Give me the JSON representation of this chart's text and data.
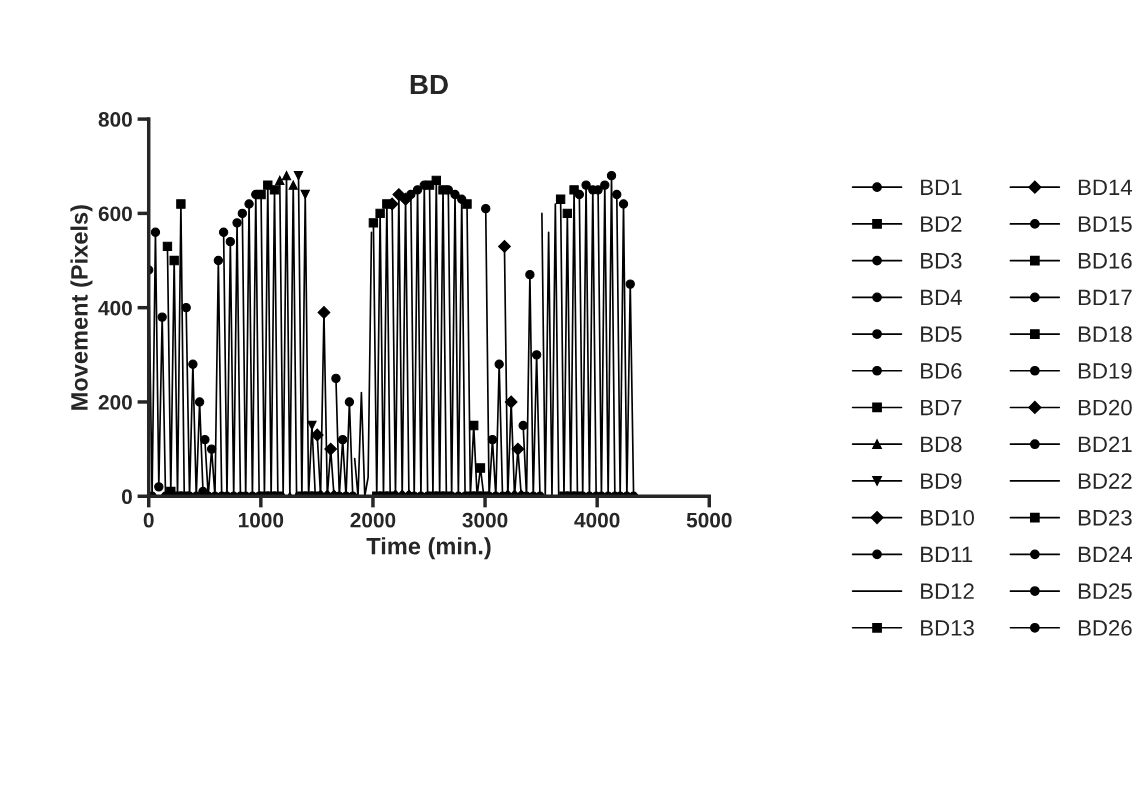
{
  "chart_data": {
    "type": "line",
    "title": "BD",
    "xlabel": "Time (min.)",
    "ylabel": "Movement (Pixels)",
    "xlim": [
      0,
      5000
    ],
    "xticks": [
      0,
      1000,
      2000,
      3000,
      4000,
      5000
    ],
    "ylim": [
      0,
      800
    ],
    "yticks": [
      0,
      200,
      400,
      600,
      800
    ],
    "grid": false,
    "legend": "right",
    "line_style": "solid",
    "series": [
      {
        "name": "BD1",
        "color": "#000000",
        "marker": "circle",
        "x": [
          0,
          30,
          60,
          90,
          120,
          150
        ],
        "values": [
          480,
          0,
          560,
          20,
          380,
          0
        ]
      },
      {
        "name": "BD2",
        "color": "#000000",
        "marker": "square",
        "x": [
          167,
          197,
          227,
          257,
          287,
          317
        ],
        "values": [
          530,
          10,
          500,
          0,
          620,
          0
        ]
      },
      {
        "name": "BD3",
        "color": "#000000",
        "marker": "circle",
        "x": [
          334,
          364,
          394,
          424,
          454,
          484
        ],
        "values": [
          400,
          0,
          280,
          0,
          200,
          10
        ]
      },
      {
        "name": "BD4",
        "color": "#000000",
        "marker": "circle",
        "x": [
          501,
          531,
          561,
          591,
          621,
          651
        ],
        "values": [
          120,
          0,
          100,
          0,
          500,
          0
        ]
      },
      {
        "name": "BD5",
        "color": "#000000",
        "marker": "circle",
        "x": [
          668,
          698,
          728,
          758,
          788,
          818
        ],
        "values": [
          560,
          0,
          540,
          0,
          580,
          0
        ]
      },
      {
        "name": "BD6",
        "color": "#000000",
        "marker": "circle",
        "x": [
          835,
          865,
          895,
          925,
          955,
          985
        ],
        "values": [
          600,
          0,
          620,
          0,
          640,
          0
        ]
      },
      {
        "name": "BD7",
        "color": "#000000",
        "marker": "square",
        "x": [
          1002,
          1032,
          1062,
          1092,
          1122,
          1152
        ],
        "values": [
          640,
          0,
          660,
          0,
          650,
          0
        ]
      },
      {
        "name": "BD8",
        "color": "#000000",
        "marker": "triangle",
        "x": [
          1169,
          1199,
          1229,
          1259,
          1289,
          1319
        ],
        "values": [
          670,
          0,
          680,
          0,
          660,
          0
        ]
      },
      {
        "name": "BD9",
        "color": "#000000",
        "marker": "triangle_down",
        "x": [
          1336,
          1366,
          1396,
          1426,
          1456,
          1486
        ],
        "values": [
          680,
          0,
          640,
          0,
          150,
          0
        ]
      },
      {
        "name": "BD10",
        "color": "#000000",
        "marker": "diamond",
        "x": [
          1503,
          1533,
          1563,
          1593,
          1623,
          1653
        ],
        "values": [
          130,
          0,
          390,
          0,
          100,
          0
        ]
      },
      {
        "name": "BD11",
        "color": "#000000",
        "marker": "circle",
        "x": [
          1670,
          1700,
          1730,
          1760,
          1790,
          1820
        ],
        "values": [
          250,
          0,
          120,
          0,
          200,
          0
        ]
      },
      {
        "name": "BD12",
        "color": "#000000",
        "marker": "none",
        "x": [
          1837,
          1867,
          1897,
          1927,
          1957,
          1987
        ],
        "values": [
          80,
          0,
          220,
          0,
          40,
          560
        ]
      },
      {
        "name": "BD13",
        "color": "#000000",
        "marker": "square",
        "x": [
          2004,
          2034,
          2064,
          2094,
          2124,
          2154
        ],
        "values": [
          580,
          0,
          600,
          0,
          620,
          0
        ]
      },
      {
        "name": "BD14",
        "color": "#000000",
        "marker": "diamond",
        "x": [
          2171,
          2201,
          2231,
          2261,
          2291,
          2321
        ],
        "values": [
          620,
          0,
          640,
          0,
          630,
          0
        ]
      },
      {
        "name": "BD15",
        "color": "#000000",
        "marker": "circle",
        "x": [
          2338,
          2368,
          2398,
          2428,
          2458,
          2488
        ],
        "values": [
          640,
          0,
          650,
          0,
          660,
          0
        ]
      },
      {
        "name": "BD16",
        "color": "#000000",
        "marker": "square",
        "x": [
          2505,
          2535,
          2565,
          2595,
          2625,
          2655
        ],
        "values": [
          660,
          0,
          670,
          0,
          650,
          0
        ]
      },
      {
        "name": "BD17",
        "color": "#000000",
        "marker": "circle",
        "x": [
          2672,
          2702,
          2732,
          2762,
          2792,
          2822
        ],
        "values": [
          650,
          0,
          640,
          0,
          630,
          0
        ]
      },
      {
        "name": "BD18",
        "color": "#000000",
        "marker": "square",
        "x": [
          2839,
          2869,
          2899,
          2929,
          2959,
          2989
        ],
        "values": [
          620,
          0,
          150,
          0,
          60,
          0
        ]
      },
      {
        "name": "BD19",
        "color": "#000000",
        "marker": "circle",
        "x": [
          3006,
          3036,
          3066,
          3096,
          3126,
          3156
        ],
        "values": [
          610,
          0,
          120,
          0,
          280,
          0
        ]
      },
      {
        "name": "BD20",
        "color": "#000000",
        "marker": "diamond",
        "x": [
          3173,
          3203,
          3233,
          3263,
          3293,
          3323
        ],
        "values": [
          530,
          0,
          200,
          0,
          100,
          0
        ]
      },
      {
        "name": "BD21",
        "color": "#000000",
        "marker": "circle",
        "x": [
          3340,
          3370,
          3400,
          3430,
          3460,
          3490
        ],
        "values": [
          150,
          0,
          470,
          0,
          300,
          0
        ]
      },
      {
        "name": "BD22",
        "color": "#000000",
        "marker": "none",
        "x": [
          3507,
          3537,
          3567,
          3597,
          3627,
          3657
        ],
        "values": [
          600,
          0,
          560,
          0,
          620,
          0
        ]
      },
      {
        "name": "BD23",
        "color": "#000000",
        "marker": "square",
        "x": [
          3674,
          3704,
          3734,
          3764,
          3794,
          3824
        ],
        "values": [
          630,
          0,
          600,
          0,
          650,
          0
        ]
      },
      {
        "name": "BD24",
        "color": "#000000",
        "marker": "circle",
        "x": [
          3841,
          3871,
          3901,
          3931,
          3961,
          3991
        ],
        "values": [
          640,
          0,
          660,
          0,
          650,
          0
        ]
      },
      {
        "name": "BD25",
        "color": "#000000",
        "marker": "circle",
        "x": [
          4008,
          4038,
          4068,
          4098,
          4128,
          4158
        ],
        "values": [
          650,
          0,
          660,
          0,
          680,
          0
        ]
      },
      {
        "name": "BD26",
        "color": "#000000",
        "marker": "circle",
        "x": [
          4175,
          4205,
          4235,
          4265,
          4295,
          4325
        ],
        "values": [
          640,
          0,
          620,
          0,
          450,
          0
        ]
      }
    ]
  }
}
